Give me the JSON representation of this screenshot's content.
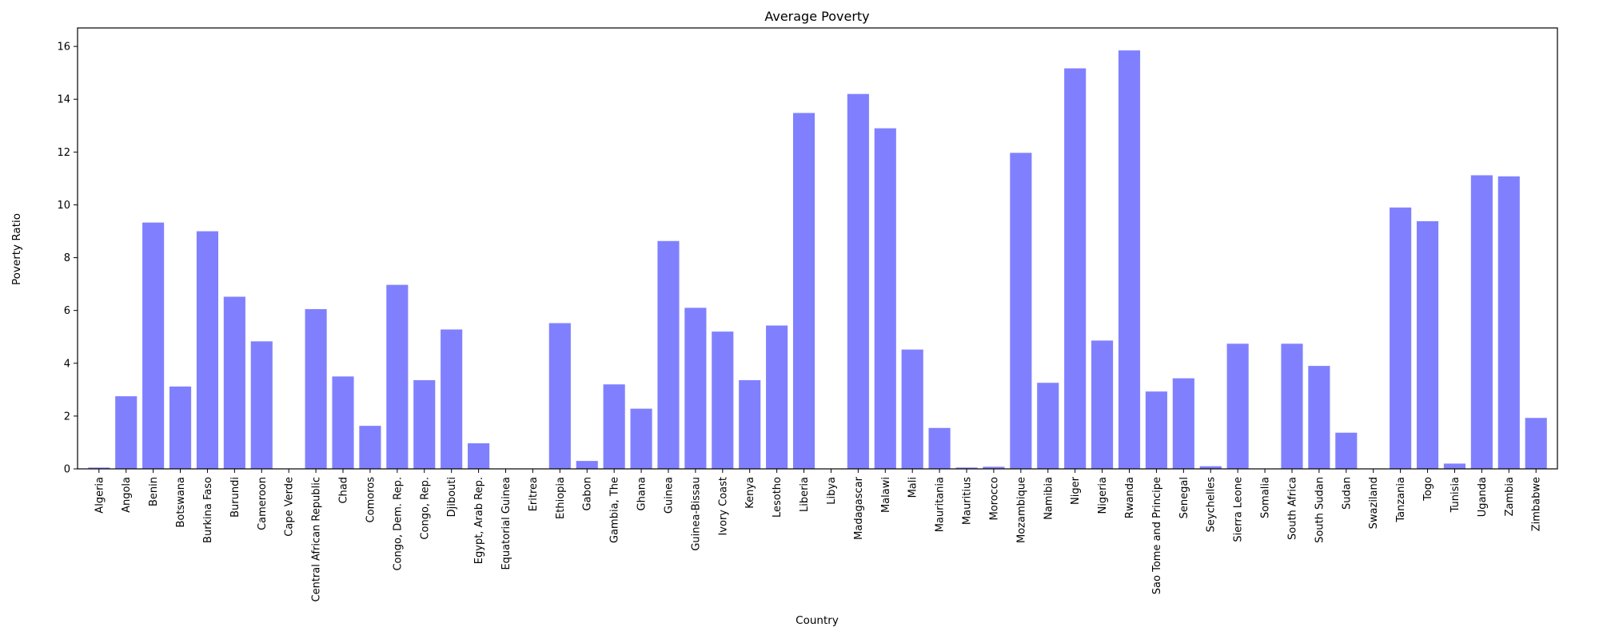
{
  "chart_data": {
    "type": "bar",
    "title": "Average Poverty",
    "xlabel": "Country",
    "ylabel": "Poverty Ratio",
    "ylim": [
      0,
      16.7
    ],
    "yticks": [
      0,
      2,
      4,
      6,
      8,
      10,
      12,
      14,
      16
    ],
    "grid": false,
    "bar_color": "#8080ff",
    "categories": [
      "Algeria",
      "Angola",
      "Benin",
      "Botswana",
      "Burkina Faso",
      "Burundi",
      "Cameroon",
      "Cape Verde",
      "Central African Republic",
      "Chad",
      "Comoros",
      "Congo, Dem. Rep.",
      "Congo, Rep.",
      "Djibouti",
      "Egypt, Arab Rep.",
      "Equatorial Guinea",
      "Eritrea",
      "Ethiopia",
      "Gabon",
      "Gambia, The",
      "Ghana",
      "Guinea",
      "Guinea-Bissau",
      "Ivory Coast",
      "Kenya",
      "Lesotho",
      "Liberia",
      "Libya",
      "Madagascar",
      "Malawi",
      "Mali",
      "Mauritania",
      "Mauritius",
      "Morocco",
      "Mozambique",
      "Namibia",
      "Niger",
      "Nigeria",
      "Rwanda",
      "Sao Tome and Principe",
      "Senegal",
      "Seychelles",
      "Sierra Leone",
      "Somalia",
      "South Africa",
      "South Sudan",
      "Sudan",
      "Swaziland",
      "Tanzania",
      "Togo",
      "Tunisia",
      "Uganda",
      "Zambia",
      "Zimbabwe"
    ],
    "values": [
      0.05,
      2.75,
      9.33,
      3.12,
      9.0,
      6.52,
      4.83,
      0.0,
      6.05,
      3.5,
      1.63,
      6.97,
      3.36,
      5.28,
      0.97,
      0.0,
      0.0,
      5.52,
      0.3,
      3.2,
      2.28,
      8.63,
      6.1,
      5.2,
      3.36,
      5.43,
      13.48,
      0.0,
      14.2,
      12.9,
      4.52,
      1.55,
      0.05,
      0.08,
      11.97,
      3.26,
      15.17,
      4.86,
      15.85,
      2.93,
      3.43,
      0.1,
      4.74,
      0.0,
      4.74,
      3.9,
      1.37,
      0.0,
      9.9,
      9.38,
      0.2,
      11.12,
      11.08,
      1.93
    ]
  }
}
